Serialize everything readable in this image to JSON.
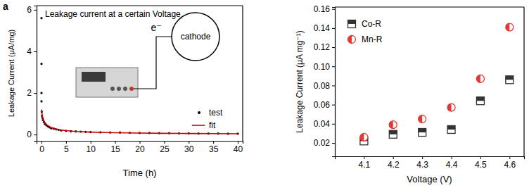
{
  "chart_data": [
    {
      "type": "scatter",
      "title": "Leakage current at a certain Voltage",
      "annotations": [
        "a",
        "e⁻",
        "cathode"
      ],
      "x_label": "Time (h)",
      "y_label": "Leakage Current  (μA/mg)",
      "xlim": [
        -1,
        41
      ],
      "ylim": [
        -0.3,
        6.2
      ],
      "xticks": [
        0,
        5,
        10,
        15,
        20,
        25,
        30,
        35,
        40
      ],
      "yticks": [
        0,
        2,
        4,
        6
      ],
      "legend": "lower right",
      "series": [
        {
          "name": "test",
          "type": "scatter",
          "marker": "circle",
          "color": "#000000",
          "x": [
            0,
            0,
            0,
            0,
            0.05,
            0.1,
            0.2,
            0.3,
            0.5,
            0.7,
            1,
            1.3,
            1.6,
            2,
            2.5,
            3,
            3.5,
            4,
            5,
            6,
            7,
            8,
            9,
            10,
            12,
            14,
            16,
            18,
            20,
            22,
            24,
            26,
            28,
            30,
            32,
            34,
            36,
            38,
            40
          ],
          "values": [
            5.6,
            3.4,
            2.0,
            1.6,
            1.1,
            0.9,
            0.8,
            0.7,
            0.6,
            0.5,
            0.45,
            0.4,
            0.35,
            0.3,
            0.28,
            0.25,
            0.23,
            0.2,
            0.18,
            0.16,
            0.15,
            0.14,
            0.13,
            0.12,
            0.11,
            0.1,
            0.1,
            0.09,
            0.08,
            0.08,
            0.07,
            0.07,
            0.06,
            0.06,
            0.05,
            0.05,
            0.05,
            0.04,
            0.04
          ]
        },
        {
          "name": "fit",
          "type": "line",
          "line_style": "solid",
          "color": "#cc0000",
          "x": [
            0,
            0.2,
            0.5,
            1,
            1.5,
            2,
            3,
            4,
            5,
            7,
            10,
            15,
            20,
            25,
            30,
            35,
            40
          ],
          "values": [
            1.2,
            0.85,
            0.65,
            0.48,
            0.4,
            0.34,
            0.27,
            0.22,
            0.19,
            0.15,
            0.12,
            0.09,
            0.07,
            0.06,
            0.05,
            0.045,
            0.04
          ]
        }
      ]
    },
    {
      "type": "scatter",
      "x_label": "Voltage (V)",
      "y_label": "Leakage Current (μA mg⁻¹)",
      "xlim": [
        4.0,
        4.65
      ],
      "ylim": [
        0.006,
        0.162
      ],
      "xticks": [
        4.1,
        4.2,
        4.3,
        4.4,
        4.5,
        4.6
      ],
      "yticks": [
        0.02,
        0.04,
        0.06,
        0.08,
        {
          "value": 0.1,
          "label": "0.10"
        },
        0.12,
        0.14,
        0.16
      ],
      "x": [
        4.1,
        4.2,
        4.3,
        4.4,
        4.5,
        4.6
      ],
      "legend": "upper left",
      "series": [
        {
          "name": "Co-R",
          "marker": "square",
          "color": "#333333",
          "values": [
            0.022,
            0.029,
            0.031,
            0.034,
            0.064,
            0.086
          ]
        },
        {
          "name": "Mn-R",
          "marker": "circle",
          "color": "#e53935",
          "values": [
            0.026,
            0.039,
            0.045,
            0.057,
            0.087,
            0.141
          ]
        }
      ]
    }
  ]
}
